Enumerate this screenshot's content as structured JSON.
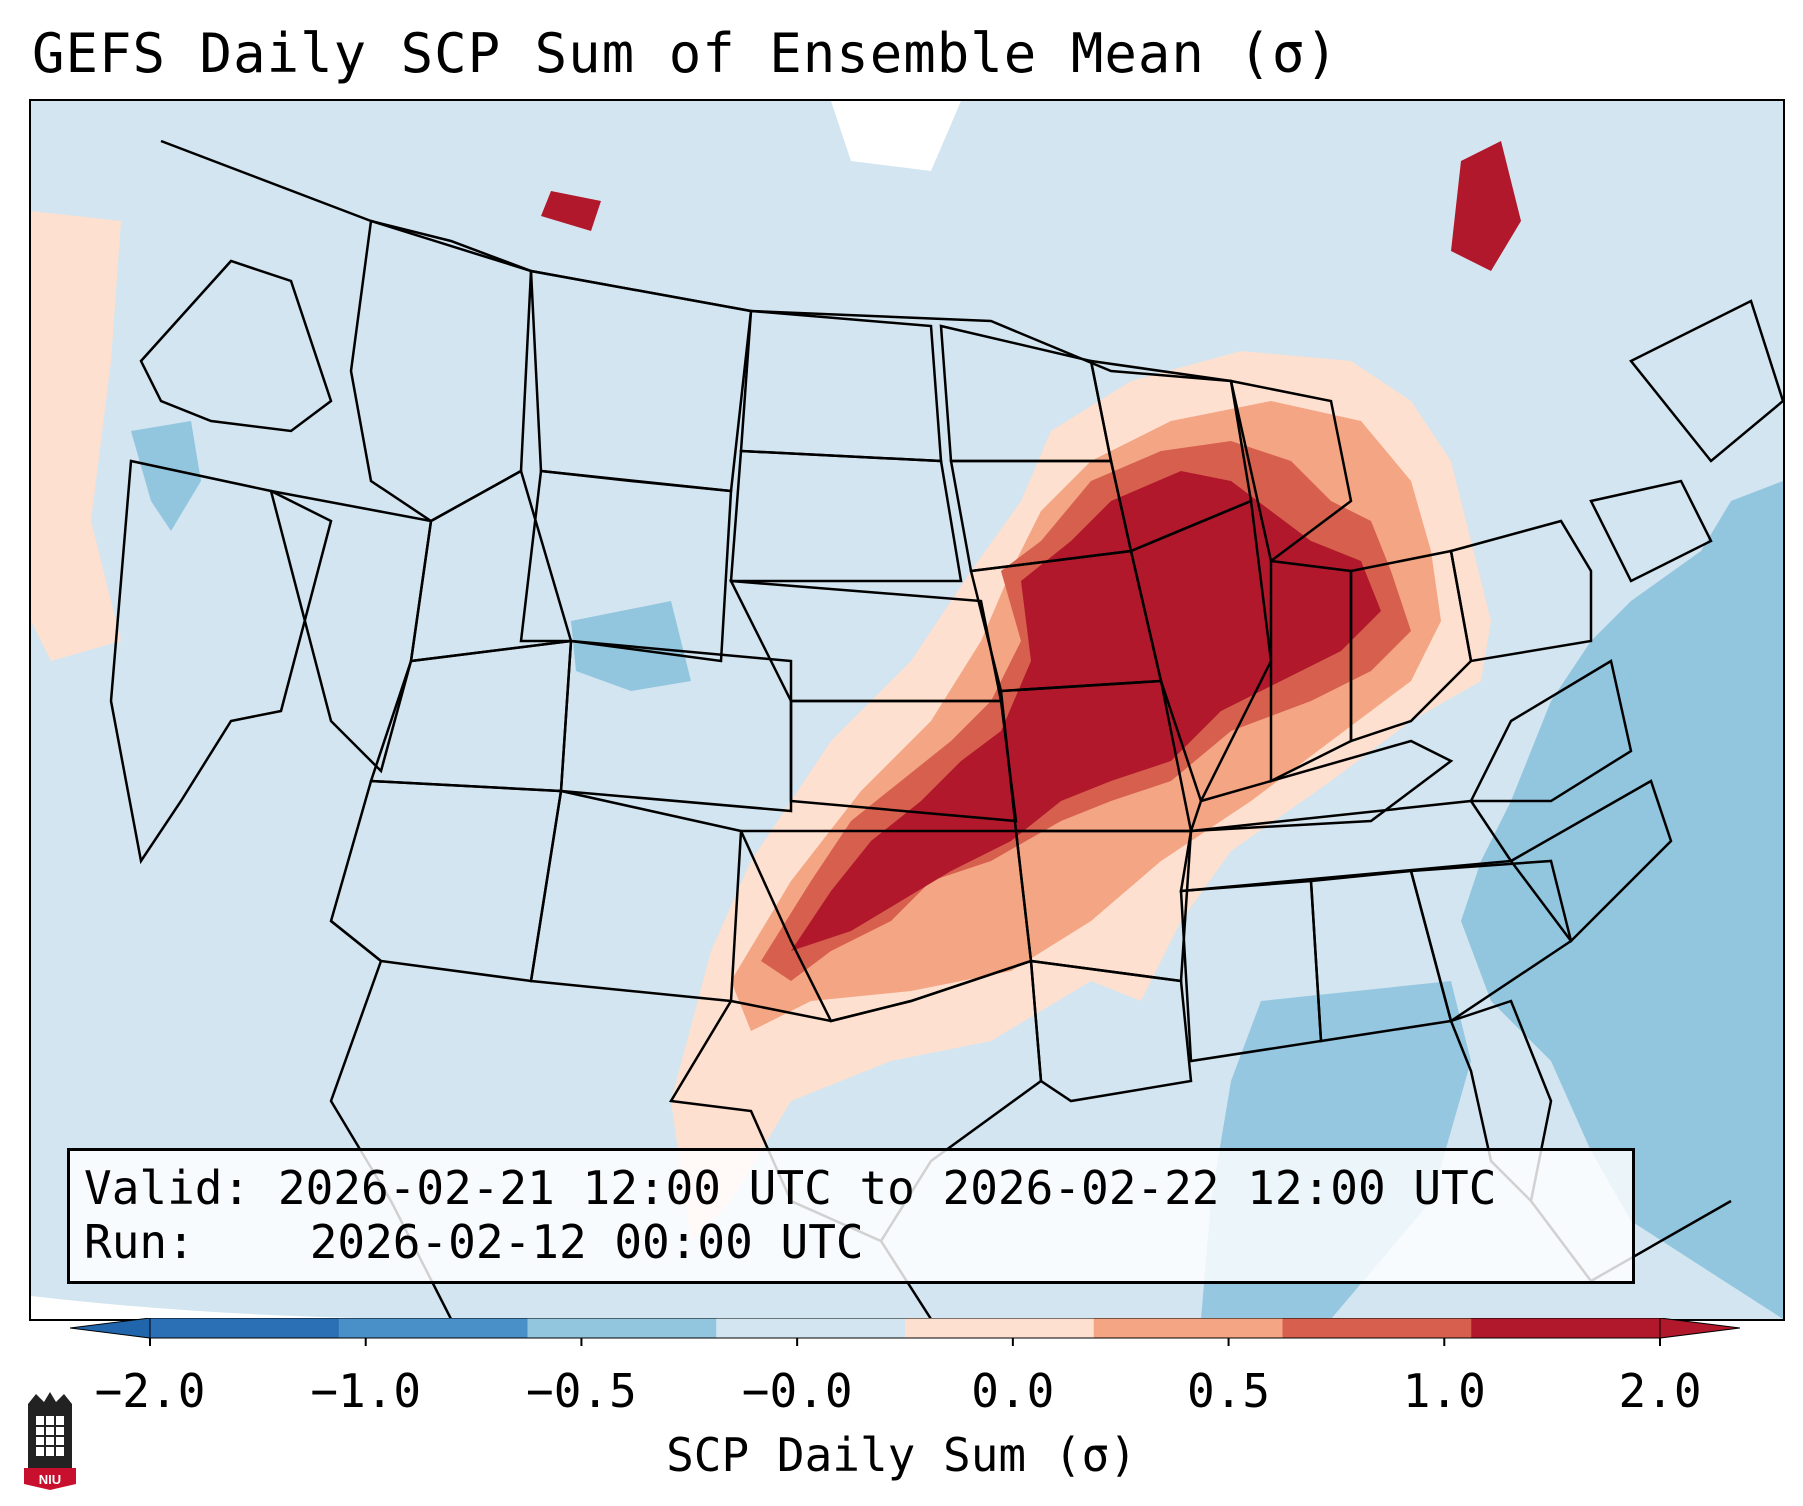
{
  "title": "GEFS Daily SCP Sum of Ensemble Mean (σ)",
  "info": {
    "valid_label": "Valid:",
    "valid_value": "2026-02-21 12:00 UTC to 2026-02-22 12:00 UTC",
    "run_label": "Run:",
    "run_value": "2026-02-12 00:00 UTC"
  },
  "colorbar": {
    "label": "SCP Daily Sum (σ)",
    "ticks": [
      "−2.0",
      "−1.0",
      "−0.5",
      "−0.0",
      "0.0",
      "0.5",
      "1.0",
      "2.0"
    ],
    "colors": [
      "#2b6fb5",
      "#4a90c8",
      "#92c5de",
      "#d2e5f0",
      "#fde0cf",
      "#f4a583",
      "#d6604d",
      "#b2182b"
    ],
    "under_color": "#2166ac",
    "over_color": "#b2182b"
  },
  "map": {
    "background_class": "-0.5 to 0.0",
    "region": "Contiguous United States",
    "highlight_region": "Mississippi and Ohio Valleys, southern Plains",
    "max_class": "1.0 to 2.0"
  },
  "logo": {
    "text": "NIU"
  }
}
